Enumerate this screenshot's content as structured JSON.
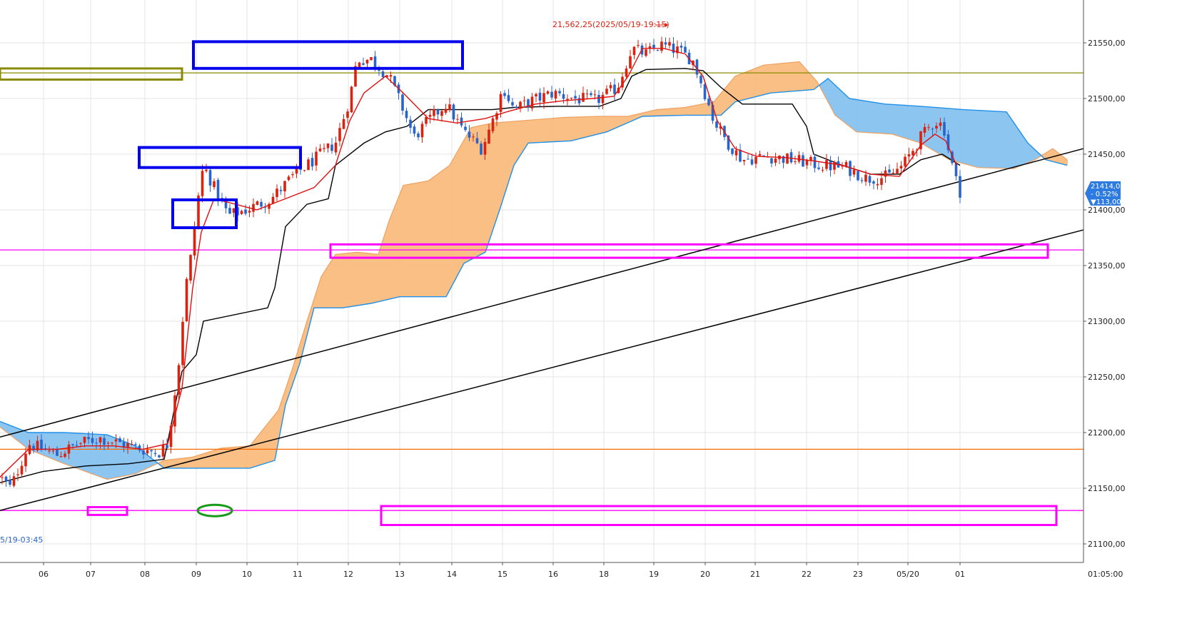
{
  "chart_data": {
    "type": "candlestick",
    "instrument_note": "",
    "y_ticks": [
      "21550,00",
      "21500,00",
      "21450,00",
      "21400,00",
      "21350,00",
      "21300,00",
      "21250,00",
      "21200,00",
      "21150,00",
      "21100,00"
    ],
    "y_tick_values": [
      21550,
      21500,
      21450,
      21400,
      21350,
      21300,
      21250,
      21200,
      21150,
      21100
    ],
    "ylim": [
      21092,
      21568
    ],
    "x_ticks": [
      "06",
      "07",
      "08",
      "09",
      "10",
      "11",
      "12",
      "13",
      "14",
      "15",
      "16",
      "18",
      "19",
      "20",
      "21",
      "22",
      "23",
      "05/20",
      "01"
    ],
    "x_corner_label": "01:05:00",
    "high_annotation": "21,562,25(2025/05/19-19:15)",
    "low_annotation": "5/19-03:45",
    "price_badge": {
      "price": "21414,00",
      "change_pct": "- 0.52%",
      "change_abs": "▼113,00",
      "color": "#2d7be0"
    },
    "horizontal_lines": [
      {
        "name": "olive-resistance",
        "value": 21523,
        "color": "#8a8a00"
      },
      {
        "name": "magenta-upper",
        "value": 21364,
        "color": "#ff00ff"
      },
      {
        "name": "orange-support",
        "value": 21185,
        "color": "#ff6a00"
      },
      {
        "name": "magenta-lower",
        "value": 21130,
        "color": "#ff00ff"
      }
    ],
    "colors": {
      "up": "#d9220f",
      "down": "#2a64c8",
      "tenkan": "#e01010",
      "kijun": "#000000",
      "cloud_bull": "#f8b878",
      "cloud_bear": "#7fbfee",
      "span_a": "#f0a060",
      "span_b": "#2090e8",
      "trendline": "#000000",
      "box_blue": "#0000ee",
      "box_magenta": "#ff00ff",
      "box_olive": "#8a8a00",
      "ellipse_green": "#1a9a1a",
      "grid": "#e4e4e4"
    },
    "price_path_anchors": [
      [
        0,
        21160
      ],
      [
        15,
        21150
      ],
      [
        40,
        21190
      ],
      [
        80,
        21180
      ],
      [
        110,
        21190
      ],
      [
        140,
        21195
      ],
      [
        170,
        21190
      ],
      [
        200,
        21185
      ],
      [
        222,
        21182
      ],
      [
        235,
        21190
      ],
      [
        250,
        21260
      ],
      [
        260,
        21330
      ],
      [
        268,
        21360
      ],
      [
        275,
        21400
      ],
      [
        285,
        21440
      ],
      [
        300,
        21420
      ],
      [
        320,
        21395
      ],
      [
        345,
        21400
      ],
      [
        380,
        21410
      ],
      [
        410,
        21430
      ],
      [
        440,
        21445
      ],
      [
        470,
        21460
      ],
      [
        490,
        21500
      ],
      [
        500,
        21535
      ],
      [
        520,
        21535
      ],
      [
        545,
        21520
      ],
      [
        565,
        21490
      ],
      [
        580,
        21465
      ],
      [
        600,
        21480
      ],
      [
        625,
        21495
      ],
      [
        650,
        21470
      ],
      [
        675,
        21455
      ],
      [
        690,
        21480
      ],
      [
        705,
        21510
      ],
      [
        720,
        21490
      ],
      [
        745,
        21498
      ],
      [
        775,
        21505
      ],
      [
        805,
        21500
      ],
      [
        835,
        21498
      ],
      [
        865,
        21510
      ],
      [
        885,
        21545
      ],
      [
        905,
        21540
      ],
      [
        925,
        21548
      ],
      [
        950,
        21543
      ],
      [
        970,
        21535
      ],
      [
        985,
        21510
      ],
      [
        1000,
        21480
      ],
      [
        1020,
        21460
      ],
      [
        1040,
        21445
      ],
      [
        1075,
        21448
      ],
      [
        1110,
        21445
      ],
      [
        1150,
        21440
      ],
      [
        1185,
        21438
      ],
      [
        1215,
        21428
      ],
      [
        1245,
        21430
      ],
      [
        1265,
        21440
      ],
      [
        1290,
        21465
      ],
      [
        1310,
        21480
      ],
      [
        1322,
        21475
      ],
      [
        1330,
        21450
      ],
      [
        1340,
        21425
      ],
      [
        1348,
        21412
      ]
    ],
    "tenkan_path": [
      [
        0,
        21160
      ],
      [
        40,
        21185
      ],
      [
        80,
        21185
      ],
      [
        120,
        21188
      ],
      [
        160,
        21188
      ],
      [
        200,
        21185
      ],
      [
        235,
        21190
      ],
      [
        255,
        21240
      ],
      [
        270,
        21330
      ],
      [
        282,
        21380
      ],
      [
        300,
        21410
      ],
      [
        330,
        21405
      ],
      [
        360,
        21400
      ],
      [
        400,
        21410
      ],
      [
        440,
        21420
      ],
      [
        470,
        21440
      ],
      [
        490,
        21480
      ],
      [
        510,
        21505
      ],
      [
        540,
        21520
      ],
      [
        565,
        21505
      ],
      [
        600,
        21482
      ],
      [
        640,
        21478
      ],
      [
        680,
        21482
      ],
      [
        710,
        21488
      ],
      [
        750,
        21495
      ],
      [
        790,
        21498
      ],
      [
        830,
        21500
      ],
      [
        860,
        21502
      ],
      [
        880,
        21520
      ],
      [
        900,
        21545
      ],
      [
        930,
        21545
      ],
      [
        960,
        21540
      ],
      [
        985,
        21520
      ],
      [
        1005,
        21480
      ],
      [
        1030,
        21455
      ],
      [
        1060,
        21448
      ],
      [
        1100,
        21447
      ],
      [
        1140,
        21444
      ],
      [
        1180,
        21440
      ],
      [
        1220,
        21432
      ],
      [
        1260,
        21430
      ],
      [
        1290,
        21458
      ],
      [
        1310,
        21468
      ],
      [
        1325,
        21462
      ],
      [
        1340,
        21440
      ]
    ],
    "kijun_path": [
      [
        0,
        21155
      ],
      [
        60,
        21165
      ],
      [
        120,
        21170
      ],
      [
        180,
        21172
      ],
      [
        230,
        21176
      ],
      [
        255,
        21255
      ],
      [
        275,
        21270
      ],
      [
        285,
        21300
      ],
      [
        375,
        21312
      ],
      [
        385,
        21330
      ],
      [
        400,
        21385
      ],
      [
        430,
        21405
      ],
      [
        460,
        21410
      ],
      [
        470,
        21440
      ],
      [
        510,
        21460
      ],
      [
        540,
        21470
      ],
      [
        570,
        21475
      ],
      [
        600,
        21490
      ],
      [
        650,
        21490
      ],
      [
        690,
        21490
      ],
      [
        720,
        21492
      ],
      [
        780,
        21493
      ],
      [
        840,
        21493
      ],
      [
        870,
        21500
      ],
      [
        885,
        21520
      ],
      [
        905,
        21526
      ],
      [
        960,
        21527
      ],
      [
        985,
        21525
      ],
      [
        1010,
        21510
      ],
      [
        1040,
        21495
      ],
      [
        1110,
        21495
      ],
      [
        1130,
        21475
      ],
      [
        1140,
        21450
      ],
      [
        1180,
        21440
      ],
      [
        1220,
        21432
      ],
      [
        1260,
        21432
      ],
      [
        1290,
        21445
      ],
      [
        1320,
        21450
      ],
      [
        1345,
        21440
      ]
    ],
    "cloud_span_a": [
      [
        0,
        21205
      ],
      [
        40,
        21185
      ],
      [
        90,
        21172
      ],
      [
        150,
        21158
      ],
      [
        190,
        21163
      ],
      [
        230,
        21175
      ],
      [
        270,
        21178
      ],
      [
        310,
        21186
      ],
      [
        350,
        21188
      ],
      [
        390,
        21220
      ],
      [
        410,
        21258
      ],
      [
        430,
        21300
      ],
      [
        450,
        21340
      ],
      [
        470,
        21360
      ],
      [
        500,
        21362
      ],
      [
        530,
        21360
      ],
      [
        545,
        21390
      ],
      [
        565,
        21422
      ],
      [
        600,
        21426
      ],
      [
        630,
        21440
      ],
      [
        660,
        21474
      ],
      [
        690,
        21478
      ],
      [
        730,
        21480
      ],
      [
        790,
        21483
      ],
      [
        840,
        21484
      ],
      [
        880,
        21484
      ],
      [
        920,
        21490
      ],
      [
        960,
        21492
      ],
      [
        1000,
        21497
      ],
      [
        1030,
        21520
      ],
      [
        1070,
        21530
      ],
      [
        1120,
        21533
      ],
      [
        1145,
        21515
      ],
      [
        1170,
        21485
      ],
      [
        1200,
        21470
      ],
      [
        1250,
        21468
      ],
      [
        1290,
        21460
      ],
      [
        1330,
        21445
      ],
      [
        1370,
        21438
      ],
      [
        1420,
        21437
      ],
      [
        1450,
        21445
      ],
      [
        1475,
        21455
      ],
      [
        1495,
        21445
      ]
    ],
    "cloud_span_b": [
      [
        0,
        21210
      ],
      [
        40,
        21200
      ],
      [
        90,
        21200
      ],
      [
        150,
        21198
      ],
      [
        190,
        21188
      ],
      [
        230,
        21168
      ],
      [
        280,
        21168
      ],
      [
        350,
        21168
      ],
      [
        385,
        21175
      ],
      [
        400,
        21225
      ],
      [
        420,
        21262
      ],
      [
        440,
        21312
      ],
      [
        480,
        21312
      ],
      [
        520,
        21316
      ],
      [
        560,
        21322
      ],
      [
        600,
        21322
      ],
      [
        625,
        21322
      ],
      [
        650,
        21352
      ],
      [
        680,
        21362
      ],
      [
        700,
        21400
      ],
      [
        720,
        21440
      ],
      [
        740,
        21460
      ],
      [
        800,
        21462
      ],
      [
        850,
        21470
      ],
      [
        900,
        21484
      ],
      [
        960,
        21485
      ],
      [
        1010,
        21485
      ],
      [
        1030,
        21497
      ],
      [
        1080,
        21505
      ],
      [
        1140,
        21508
      ],
      [
        1160,
        21518
      ],
      [
        1190,
        21500
      ],
      [
        1240,
        21495
      ],
      [
        1290,
        21493
      ],
      [
        1350,
        21490
      ],
      [
        1410,
        21488
      ],
      [
        1440,
        21460
      ],
      [
        1465,
        21445
      ],
      [
        1495,
        21440
      ]
    ],
    "trendlines": [
      {
        "name": "upper-channel",
        "x1": 0,
        "y1": 21196,
        "x2": 1518,
        "y2": 21455
      },
      {
        "name": "lower-channel",
        "x1": 0,
        "y1": 21130,
        "x2": 1518,
        "y2": 21382
      }
    ],
    "boxes": [
      {
        "name": "olive-box",
        "x1": 0,
        "x2": 255,
        "top": 21527,
        "bottom": 21517,
        "color": "olive"
      },
      {
        "name": "blue-box-top",
        "x1": 271,
        "x2": 648,
        "top": 21551,
        "bottom": 21527,
        "color": "blue"
      },
      {
        "name": "blue-box-mid",
        "x1": 195,
        "x2": 421,
        "top": 21456,
        "bottom": 21438,
        "color": "blue"
      },
      {
        "name": "blue-box-small",
        "x1": 242,
        "x2": 331,
        "top": 21409,
        "bottom": 21384,
        "color": "blue"
      },
      {
        "name": "magenta-box-upper",
        "x1": 463,
        "x2": 1468,
        "top": 21369,
        "bottom": 21357,
        "color": "magenta"
      },
      {
        "name": "magenta-box-lower",
        "x1": 534,
        "x2": 1480,
        "top": 21134,
        "bottom": 21117,
        "color": "magenta"
      },
      {
        "name": "magenta-box-small",
        "x1": 123,
        "x2": 178,
        "top": 21133,
        "bottom": 21126,
        "color": "magenta"
      }
    ],
    "ellipse": {
      "cx": 301,
      "value": 21130,
      "rx": 24,
      "ry": 8
    }
  }
}
